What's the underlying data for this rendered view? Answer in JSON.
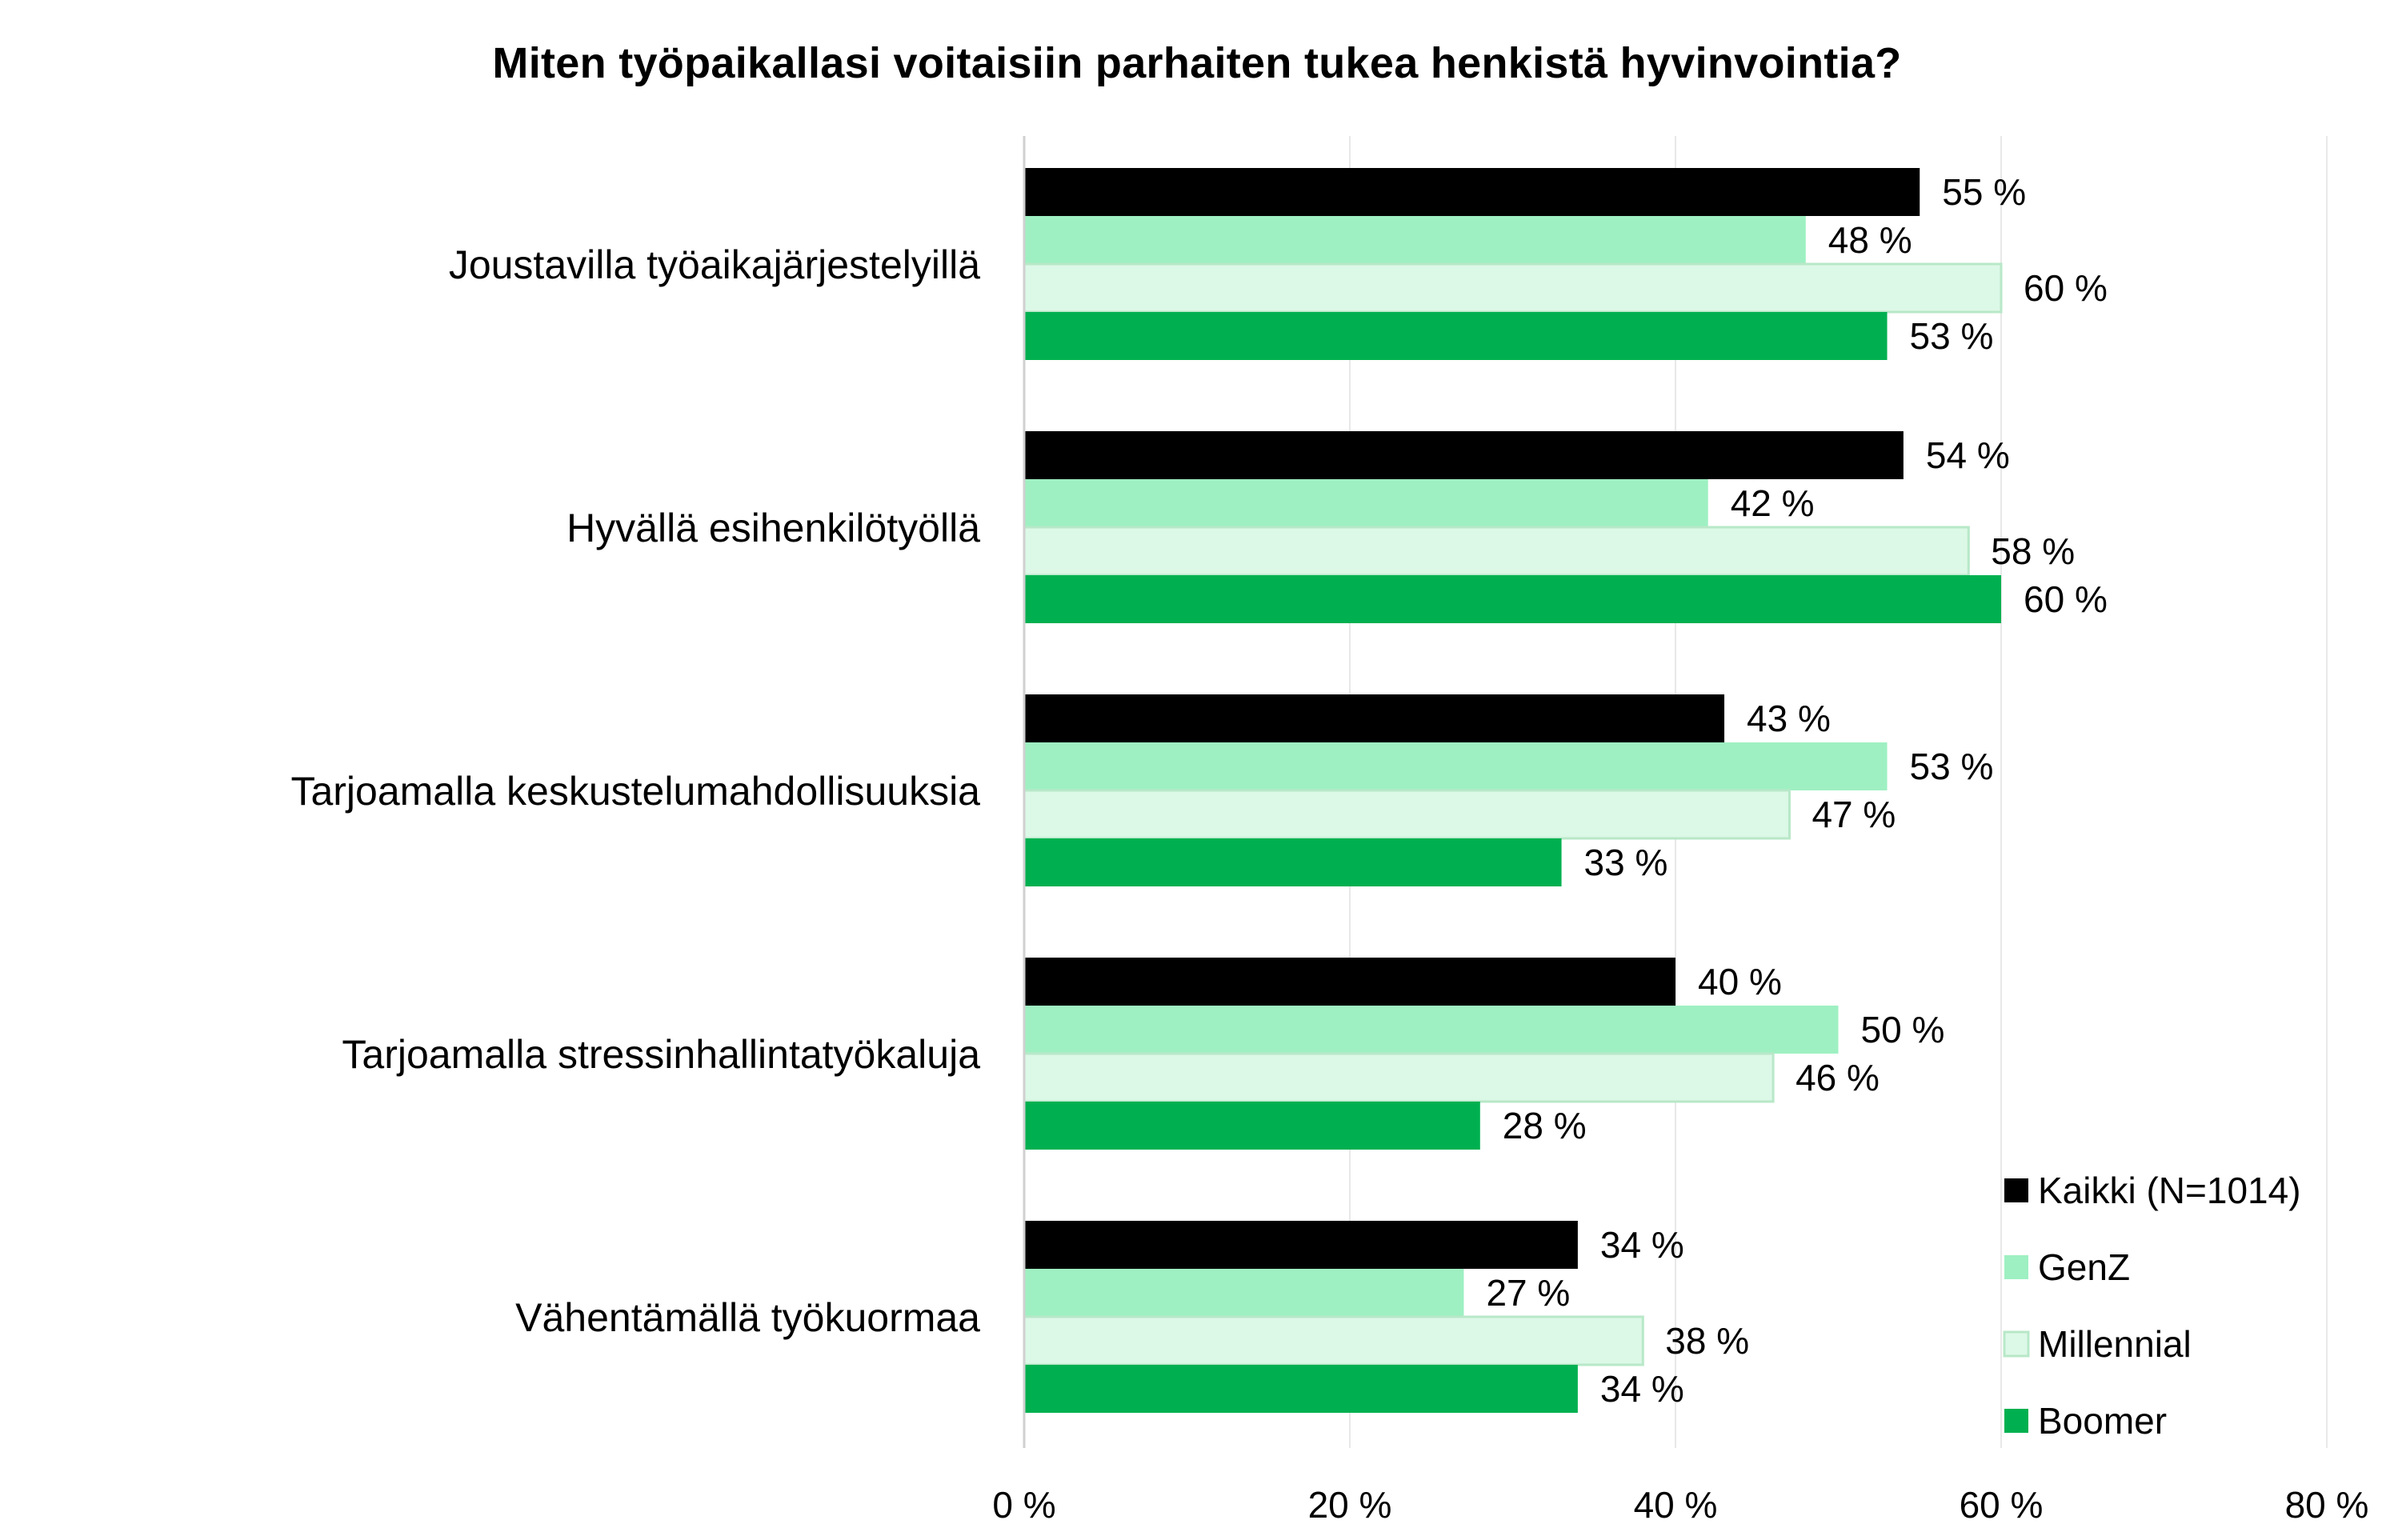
{
  "chart_data": {
    "type": "bar",
    "orientation": "horizontal",
    "title": "Miten työpaikallasi voitaisiin parhaiten tukea henkistä hyvinvointia?",
    "categories": [
      "Joustavilla työaikajärjestelyillä",
      "Hyvällä esihenkilötyöllä",
      "Tarjoamalla keskustelumahdollisuuksia",
      "Tarjoamalla stressinhallintatyökaluja",
      "Vähentämällä työkuormaa"
    ],
    "series": [
      {
        "name": "Kaikki (N=1014)",
        "color": "#000000",
        "values": [
          55,
          54,
          43,
          40,
          34
        ],
        "labels": [
          "55 %",
          "54 %",
          "43 %",
          "40 %",
          "34 %"
        ]
      },
      {
        "name": "GenZ",
        "color": "#9ef0c2",
        "values": [
          48,
          42,
          53,
          50,
          27
        ],
        "labels": [
          "48 %",
          "42 %",
          "53 %",
          "50 %",
          "27 %"
        ]
      },
      {
        "name": "Millennial",
        "color": "#dcf8e7",
        "values": [
          60,
          58,
          47,
          46,
          38
        ],
        "labels": [
          "60 %",
          "58 %",
          "47 %",
          "46 %",
          "38 %"
        ]
      },
      {
        "name": "Boomer",
        "color": "#00b050",
        "values": [
          53,
          60,
          33,
          28,
          34
        ],
        "labels": [
          "53 %",
          "60 %",
          "33 %",
          "28 %",
          "34 %"
        ]
      }
    ],
    "xlim": [
      0,
      80
    ],
    "xticks": [
      0,
      20,
      40,
      60,
      80
    ],
    "xtick_labels": [
      "0 %",
      "20 %",
      "40 %",
      "60 %",
      "80 %"
    ],
    "grid": true,
    "legend_position": "bottom-right"
  }
}
